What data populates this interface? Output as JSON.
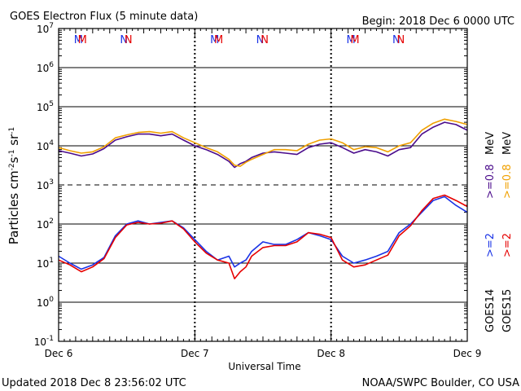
{
  "header": {
    "title": "GOES Electron Flux (5 minute data)",
    "begin": "Begin: 2018 Dec 6 0000 UTC"
  },
  "footer": {
    "updated": "Updated 2018 Dec  8 23:56:02 UTC",
    "credit": "NOAA/SWPC Boulder, CO USA"
  },
  "markers": {
    "m": "M",
    "n": "N",
    "colors": {
      "goes14": "#1a33e6",
      "goes15": "#e60000"
    }
  },
  "colors": {
    "goes14_2mev": "#1a33e6",
    "goes15_2mev": "#e60000",
    "goes14_08mev": "#4b0c8c",
    "goes15_08mev": "#f0a000"
  },
  "legend": {
    "goes14": "GOES14",
    "goes15": "GOES15",
    "goes14_2mev": ">=2",
    "goes15_2mev": ">=2",
    "goes14_08mev": ">=0.8",
    "goes15_08mev": ">=0.8",
    "unit": "MeV"
  },
  "chart_data": {
    "type": "line",
    "title": "GOES Electron Flux (5 minute data)",
    "xlabel": "Universal Time",
    "ylabel_parts": {
      "base": "Particles cm",
      "e1": "-2",
      "mid1": "s",
      "e2": "-1",
      "mid2": "sr",
      "e3": "-1"
    },
    "x_tick_labels": [
      "Dec 6",
      "Dec 7",
      "Dec 8",
      "Dec 9"
    ],
    "xlim_hours": [
      0,
      72
    ],
    "y_scale": "log",
    "ylim": [
      0.1,
      10000000
    ],
    "y_tick_labels": [
      {
        "base": "10",
        "exp": "7"
      },
      {
        "base": "10",
        "exp": "6"
      },
      {
        "base": "10",
        "exp": "5"
      },
      {
        "base": "10",
        "exp": "4"
      },
      {
        "base": "10",
        "exp": "3"
      },
      {
        "base": "10",
        "exp": "2"
      },
      {
        "base": "10",
        "exp": "1"
      },
      {
        "base": "10",
        "exp": "0"
      },
      {
        "base": "10",
        "exp": "-1"
      }
    ],
    "threshold_lines": [
      {
        "y": 1000,
        "style": "dashed"
      }
    ],
    "series": [
      {
        "name": "GOES14 >=0.8 MeV",
        "color": "#4b0c8c",
        "x": [
          0,
          2,
          4,
          6,
          8,
          10,
          12,
          14,
          16,
          18,
          20,
          22,
          24,
          26,
          28,
          30,
          31,
          32,
          33,
          34,
          36,
          38,
          40,
          42,
          44,
          46,
          48,
          50,
          52,
          54,
          56,
          58,
          60,
          62,
          64,
          66,
          68,
          70,
          72
        ],
        "y": [
          7500,
          6500,
          5500,
          6200,
          8500,
          14000,
          17000,
          20000,
          20000,
          18000,
          20000,
          14000,
          10000,
          8000,
          6000,
          4000,
          2800,
          3500,
          4000,
          5000,
          6500,
          7000,
          6500,
          6000,
          9000,
          11000,
          12000,
          9000,
          6500,
          8000,
          7000,
          5500,
          8000,
          9000,
          20000,
          30000,
          40000,
          35000,
          25000
        ]
      },
      {
        "name": "GOES15 >=0.8 MeV",
        "color": "#f0a000",
        "x": [
          0,
          2,
          4,
          6,
          8,
          10,
          12,
          14,
          16,
          18,
          20,
          22,
          24,
          26,
          28,
          30,
          31,
          32,
          33,
          34,
          36,
          38,
          40,
          42,
          44,
          46,
          48,
          50,
          52,
          54,
          56,
          58,
          60,
          62,
          64,
          66,
          68,
          70,
          72
        ],
        "y": [
          9000,
          7500,
          6500,
          7000,
          9500,
          16000,
          19000,
          22000,
          23000,
          21000,
          23000,
          16000,
          12000,
          9000,
          7000,
          4500,
          3200,
          3000,
          3800,
          4500,
          6000,
          8000,
          8000,
          7500,
          11000,
          14000,
          15000,
          12000,
          8000,
          9500,
          9000,
          7000,
          10000,
          12000,
          25000,
          38000,
          48000,
          42000,
          35000
        ]
      },
      {
        "name": "GOES14 >=2 MeV",
        "color": "#1a33e6",
        "x": [
          0,
          2,
          4,
          6,
          8,
          10,
          12,
          14,
          16,
          18,
          20,
          22,
          24,
          26,
          28,
          30,
          31,
          32,
          33,
          34,
          36,
          38,
          40,
          42,
          44,
          46,
          48,
          50,
          52,
          54,
          56,
          58,
          60,
          62,
          64,
          66,
          68,
          70,
          72
        ],
        "y": [
          15,
          10,
          7,
          9,
          14,
          50,
          100,
          120,
          100,
          110,
          120,
          80,
          40,
          20,
          12,
          15,
          8,
          10,
          12,
          20,
          35,
          30,
          30,
          40,
          60,
          50,
          40,
          15,
          10,
          12,
          15,
          20,
          60,
          100,
          200,
          400,
          500,
          300,
          200
        ]
      },
      {
        "name": "GOES15 >=2 MeV",
        "color": "#e60000",
        "x": [
          0,
          2,
          4,
          6,
          8,
          10,
          12,
          14,
          16,
          18,
          20,
          22,
          24,
          26,
          28,
          30,
          31,
          32,
          33,
          34,
          36,
          38,
          40,
          42,
          44,
          46,
          48,
          50,
          52,
          54,
          56,
          58,
          60,
          62,
          64,
          66,
          68,
          70,
          72
        ],
        "y": [
          12,
          9,
          6,
          8,
          13,
          45,
          95,
          110,
          100,
          105,
          120,
          75,
          35,
          18,
          12,
          10,
          4,
          6,
          8,
          15,
          25,
          28,
          28,
          35,
          60,
          55,
          45,
          12,
          8,
          9,
          12,
          16,
          50,
          90,
          220,
          450,
          550,
          400,
          280
        ]
      }
    ]
  }
}
